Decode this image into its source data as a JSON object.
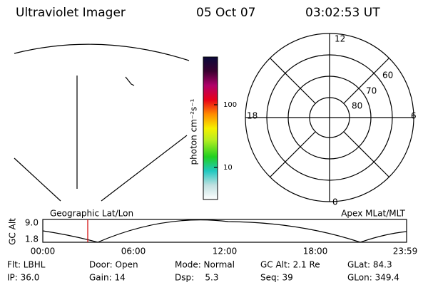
{
  "header": {
    "title": "Ultraviolet Imager",
    "date": "05 Oct 07",
    "time": "03:02:53 UT"
  },
  "colorbar": {
    "label": "photon cm⁻²s⁻¹",
    "ticks": [
      "100",
      "10"
    ]
  },
  "polar": {
    "labels": [
      "12",
      "60",
      "70",
      "80",
      "18",
      "6",
      "0"
    ]
  },
  "panel_titles": {
    "left": "Geographic Lat/Lon",
    "right": "Apex MLat/MLT"
  },
  "alt_plot": {
    "ylabel": "GC Alt",
    "yticks": [
      "9.0",
      "1.8"
    ],
    "xticks": [
      "00:00",
      "06:00",
      "12:00",
      "18:00",
      "23:59"
    ]
  },
  "footer": {
    "rows": [
      [
        "Flt: LBHL",
        "Door: Open",
        "Mode: Normal",
        "GC Alt: 2.1 Re",
        "GLat: 84.3"
      ],
      [
        "IP: 36.0",
        "Gain: 14",
        "Dsp:    5.3",
        "Seq: 39",
        "GLon: 349.4"
      ]
    ]
  }
}
